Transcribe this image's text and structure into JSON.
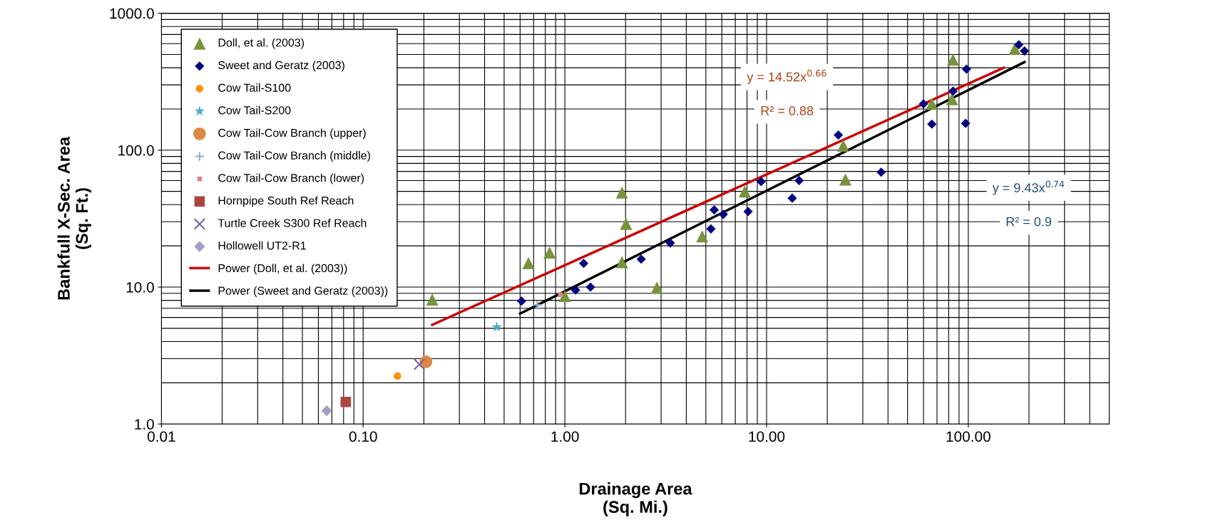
{
  "chart_data": {
    "type": "scatter",
    "xlabel": "Drainage Area\n(Sq. Mi.)",
    "ylabel": "Bankfull X-Sec. Area\n(Sq. Ft.)",
    "log": "xy",
    "xlim": [
      0.01,
      500
    ],
    "ylim": [
      1,
      1000
    ],
    "xticks": [
      0.01,
      {
        "value": 0.1,
        "label": "0.10"
      },
      {
        "value": 1,
        "label": "1.00"
      },
      {
        "value": 10,
        "label": "10.00"
      },
      {
        "value": 100,
        "label": "100.00"
      }
    ],
    "yticks": [
      {
        "value": 1,
        "label": "1.0"
      },
      {
        "value": 10,
        "label": "10.0"
      },
      {
        "value": 100,
        "label": "100.0"
      },
      {
        "value": 1000,
        "label": "1000.0"
      }
    ],
    "grid": true,
    "legend": "top left",
    "annotations": [
      "y = 14.52x$^{0.66}$",
      "R² = 0.88",
      "y = 9.43x$^{0.74}$",
      "R² = 0.9"
    ],
    "series": [
      {
        "name": "Doll, et al. (2003)",
        "marker": "triangle",
        "color": "#77933c",
        "x": [
          0.22,
          0.66,
          0.84,
          1.0,
          1.92,
          2.01,
          1.92,
          2.86,
          4.8,
          7.8,
          24,
          24.6,
          66,
          83,
          84,
          170
        ],
        "values": [
          8.1,
          15,
          17.9,
          8.6,
          49,
          29,
          15.2,
          9.9,
          23.5,
          50,
          108,
          61,
          218,
          236,
          458,
          550
        ]
      },
      {
        "name": "Sweet and Geratz (2003)",
        "marker": "diamond",
        "color": "#000080",
        "x": [
          0.61,
          1.13,
          1.24,
          1.34,
          2.39,
          3.33,
          5.3,
          5.5,
          6.1,
          8.1,
          9.4,
          13.4,
          14.5,
          22.7,
          37,
          60,
          66,
          84,
          97,
          98,
          178,
          190
        ],
        "values": [
          7.9,
          9.5,
          14.9,
          10,
          16,
          21,
          26.6,
          36.6,
          34,
          35.6,
          59,
          44.6,
          60,
          129,
          69,
          218,
          155,
          270,
          157,
          391,
          589,
          530
        ]
      },
      {
        "name": "Cow Tail-S100",
        "marker": "circle",
        "color": "#ff8c00",
        "x": [
          0.148
        ],
        "values": [
          2.24
        ]
      },
      {
        "name": "Cow Tail-S200",
        "marker": "star",
        "color": "#4bacc6",
        "x": [
          0.46
        ],
        "values": [
          5.1
        ]
      },
      {
        "name": "Cow Tail-Cow Branch (upper)",
        "marker": "circle",
        "color": "#dd8844",
        "x": [
          0.205
        ],
        "values": [
          2.85
        ]
      },
      {
        "name": "Cow Tail-Cow Branch (middle)",
        "marker": "plus",
        "color": "#8faadc",
        "x": [
          0.73
        ],
        "values": [
          7.4
        ]
      },
      {
        "name": "Cow Tail-Cow Branch (lower)",
        "marker": "square",
        "color": "#e6808a",
        "x": [
          0.95
        ],
        "values": [
          8.8
        ]
      },
      {
        "name": "Hornpipe South Ref Reach",
        "marker": "square",
        "color": "#b0453f",
        "x": [
          0.082
        ],
        "values": [
          1.45
        ]
      },
      {
        "name": "Turtle Creek S300 Ref Reach",
        "marker": "cross",
        "color": "#7a60a8",
        "x": [
          0.19
        ],
        "values": [
          2.73
        ]
      },
      {
        "name": "Hollowell UT2-R1",
        "marker": "diamond",
        "color": "#a89bc4",
        "x": [
          0.066
        ],
        "values": [
          1.25
        ]
      },
      {
        "name": "Power (Doll, et al. (2003))",
        "type": "line",
        "marker": "none",
        "line_style": "solid",
        "color": "#cc0000",
        "x": [
          0.22,
          150
        ],
        "values": [
          5.3,
          400
        ]
      },
      {
        "name": "Power (Sweet and Geratz (2003))",
        "type": "line",
        "marker": "none",
        "line_style": "solid",
        "color": "#000000",
        "x": [
          0.6,
          190
        ],
        "values": [
          6.4,
          440
        ]
      }
    ]
  }
}
